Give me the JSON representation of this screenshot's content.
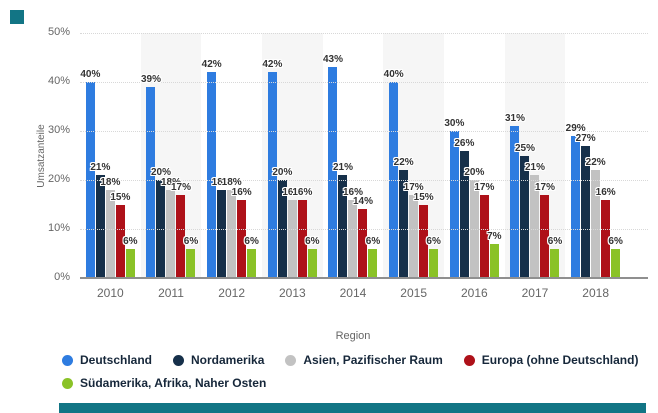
{
  "page": {
    "accent_color": "#127585"
  },
  "chart_data": {
    "type": "bar",
    "title": "",
    "xlabel": "Region",
    "ylabel": "Umsatzanteile",
    "ylim": [
      0,
      50
    ],
    "yticks": [
      0,
      10,
      20,
      30,
      40,
      50
    ],
    "ytick_labels": [
      "0%",
      "10%",
      "20%",
      "30%",
      "40%",
      "50%"
    ],
    "grid": "dotted-horizontal",
    "plot_band_color": "#f6f6f6",
    "legend_position": "bottom-left",
    "legend_rows": [
      4,
      1
    ],
    "value_label_suffix": "%",
    "categories": [
      "2010",
      "2011",
      "2012",
      "2013",
      "2014",
      "2015",
      "2016",
      "2017",
      "2018"
    ],
    "series": [
      {
        "name": "Deutschland",
        "color": "#2e7ce0",
        "values": [
          40,
          39,
          42,
          42,
          43,
          40,
          30,
          31,
          29
        ]
      },
      {
        "name": "Nordamerika",
        "color": "#16304a",
        "values": [
          21,
          20,
          18,
          20,
          21,
          22,
          26,
          25,
          27
        ]
      },
      {
        "name": "Asien, Pazifischer Raum",
        "color": "#c2c2c2",
        "values": [
          18,
          18,
          18,
          16,
          16,
          17,
          20,
          21,
          22
        ]
      },
      {
        "name": "Europa (ohne Deutschland)",
        "color": "#ae1119",
        "values": [
          15,
          17,
          16,
          16,
          14,
          15,
          17,
          17,
          16
        ]
      },
      {
        "name": "Südamerika, Afrika, Naher Osten",
        "color": "#8ac227",
        "values": [
          6,
          6,
          6,
          6,
          6,
          6,
          7,
          6,
          6
        ]
      }
    ]
  }
}
